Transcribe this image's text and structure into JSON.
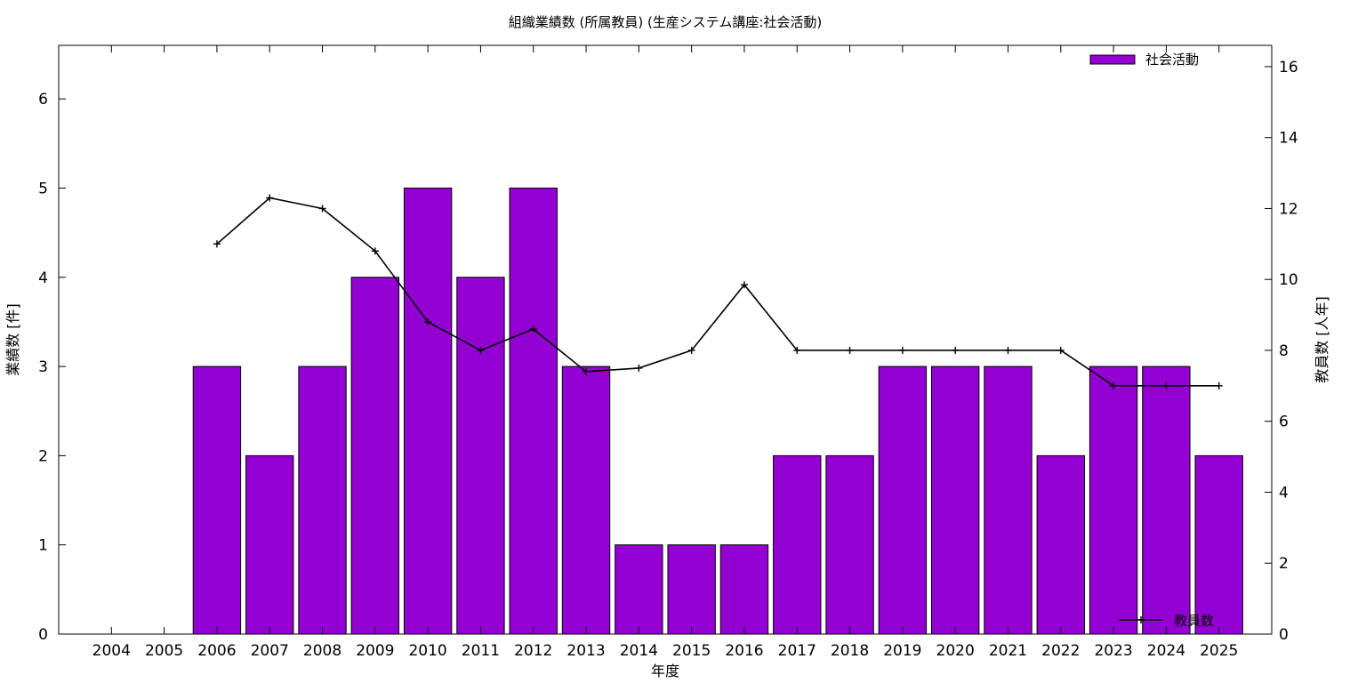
{
  "chart_data": {
    "type": "bar",
    "title": "組織業績数 (所属教員) (生産システム講座:社会活動)",
    "xlabel": "年度",
    "ylabel": "業績数 [件]",
    "y2label": "教員数 [人年]",
    "categories": [
      "2004",
      "2005",
      "2006",
      "2007",
      "2008",
      "2009",
      "2010",
      "2011",
      "2012",
      "2013",
      "2014",
      "2015",
      "2016",
      "2017",
      "2018",
      "2019",
      "2020",
      "2021",
      "2022",
      "2023",
      "2024",
      "2025"
    ],
    "series": [
      {
        "name": "社会活動",
        "type": "bar",
        "axis": "left",
        "color": "#9400d3",
        "values": [
          null,
          null,
          3,
          2,
          3,
          4,
          5,
          4,
          5,
          3,
          1,
          1,
          1,
          2,
          2,
          3,
          3,
          3,
          2,
          3,
          3,
          2
        ]
      },
      {
        "name": "教員数",
        "type": "line",
        "axis": "right",
        "color": "#000000",
        "values": [
          null,
          null,
          11.0,
          12.3,
          12.0,
          10.8,
          8.8,
          8.0,
          8.6,
          7.4,
          7.5,
          8.0,
          9.85,
          8.0,
          8.0,
          8.0,
          8.0,
          8.0,
          8.0,
          7.0,
          7.0,
          7.0
        ]
      }
    ],
    "ylim": [
      0,
      6.6
    ],
    "yticks": [
      0,
      1,
      2,
      3,
      4,
      5,
      6
    ],
    "y2lim": [
      0,
      16.6
    ],
    "y2ticks": [
      0,
      2,
      4,
      6,
      8,
      10,
      12,
      14,
      16
    ],
    "xlim": [
      2003,
      2026
    ],
    "grid": false,
    "legend": [
      {
        "label": "社会活動",
        "placement": "top-right"
      },
      {
        "label": "教員数",
        "placement": "bottom-right"
      }
    ]
  }
}
